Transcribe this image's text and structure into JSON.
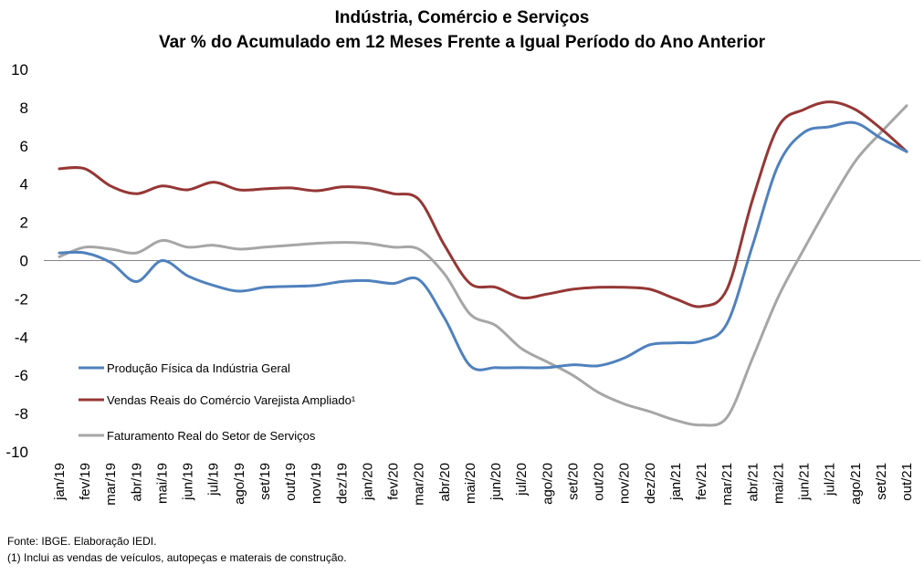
{
  "chart_data": {
    "type": "line",
    "title_line1": "Indústria, Comércio e Serviços",
    "title_line2": "Var % do Acumulado em 12 Meses Frente a Igual Período do Ano Anterior",
    "xlabel": "",
    "ylabel": "",
    "ylim": [
      -10,
      10
    ],
    "yticks": [
      10,
      8,
      6,
      4,
      2,
      0,
      -2,
      -4,
      -6,
      -8,
      -10
    ],
    "grid": false,
    "legend_position": "lower-left",
    "categories": [
      "jan/19",
      "fev/19",
      "mar/19",
      "abr/19",
      "mai/19",
      "jun/19",
      "jul/19",
      "ago/19",
      "set/19",
      "out/19",
      "nov/19",
      "dez/19",
      "jan/20",
      "fev/20",
      "mar/20",
      "abr/20",
      "mai/20",
      "jun/20",
      "jul/20",
      "ago/20",
      "set/20",
      "out/20",
      "nov/20",
      "dez/20",
      "jan/21",
      "fev/21",
      "mar/21",
      "abr/21",
      "mai/21",
      "jun/21",
      "jul/21",
      "ago/21",
      "set/21",
      "out/21"
    ],
    "series": [
      {
        "name": "Produção Física da Indústria Geral",
        "color": "#4F81BD",
        "values": [
          0.4,
          0.4,
          -0.1,
          -1.1,
          0.0,
          -0.8,
          -1.3,
          -1.6,
          -1.4,
          -1.35,
          -1.3,
          -1.1,
          -1.05,
          -1.2,
          -1.0,
          -3.0,
          -5.5,
          -5.6,
          -5.6,
          -5.6,
          -5.45,
          -5.5,
          -5.1,
          -4.4,
          -4.3,
          -4.2,
          -3.3,
          0.8,
          5.0,
          6.7,
          7.0,
          7.2,
          6.4,
          5.7
        ]
      },
      {
        "name": "Vendas Reais do Comércio Varejista Ampliado¹",
        "color": "#953735",
        "values": [
          4.8,
          4.8,
          3.9,
          3.5,
          3.9,
          3.7,
          4.1,
          3.7,
          3.75,
          3.8,
          3.65,
          3.85,
          3.8,
          3.5,
          3.2,
          0.8,
          -1.2,
          -1.4,
          -1.95,
          -1.75,
          -1.5,
          -1.4,
          -1.4,
          -1.5,
          -2.0,
          -2.4,
          -1.5,
          3.2,
          7.0,
          7.9,
          8.3,
          7.9,
          6.9,
          5.7
        ]
      },
      {
        "name": "Faturamento Real do Setor de Serviços",
        "color": "#A6A6A6",
        "values": [
          0.2,
          0.7,
          0.6,
          0.4,
          1.05,
          0.7,
          0.8,
          0.6,
          0.7,
          0.8,
          0.9,
          0.95,
          0.9,
          0.7,
          0.6,
          -0.7,
          -2.8,
          -3.4,
          -4.6,
          -5.3,
          -6.0,
          -6.9,
          -7.5,
          -7.9,
          -8.35,
          -8.6,
          -8.2,
          -5.1,
          -1.9,
          0.6,
          3.0,
          5.2,
          6.7,
          8.1
        ]
      }
    ]
  },
  "footer": {
    "source": "Fonte: IBGE. Elaboração IEDI.",
    "note": "(1) Inclui as vendas de veículos, autopeças e materais de construção."
  }
}
